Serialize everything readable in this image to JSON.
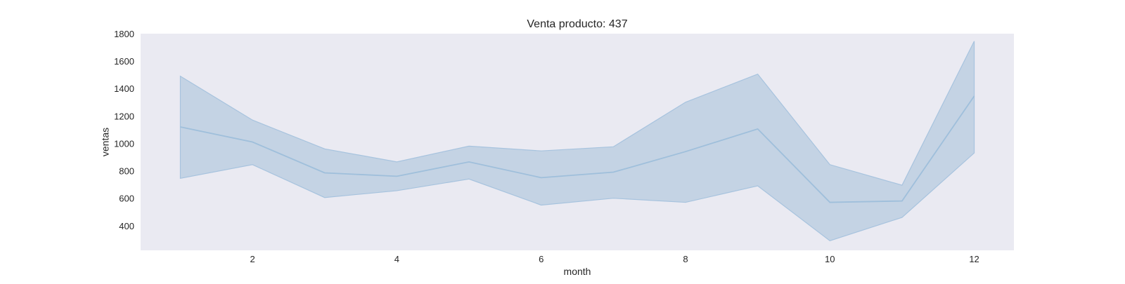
{
  "chart_data": {
    "type": "line",
    "title": "Venta producto: 437",
    "xlabel": "month",
    "ylabel": "ventas",
    "x": [
      1,
      2,
      3,
      4,
      5,
      6,
      7,
      8,
      9,
      10,
      11,
      12
    ],
    "series": [
      {
        "values": [
          1120,
          1010,
          785,
          760,
          865,
          750,
          790,
          940,
          1105,
          570,
          580,
          1345
        ],
        "ci_upper": [
          1490,
          1170,
          960,
          865,
          980,
          945,
          975,
          1300,
          1505,
          845,
          695,
          1745
        ],
        "ci_lower": [
          745,
          845,
          605,
          655,
          740,
          550,
          600,
          570,
          690,
          290,
          460,
          930
        ]
      }
    ],
    "xlim": [
      0.45,
      12.55
    ],
    "ylim": [
      220,
      1800
    ],
    "xticks": [
      2,
      4,
      6,
      8,
      10,
      12
    ],
    "yticks": [
      400,
      600,
      800,
      1000,
      1200,
      1400,
      1600,
      1800
    ],
    "grid": false,
    "colors": {
      "plot_background": "#eaeaf2",
      "line": "#9fbfdb",
      "band_fill": "#c2d2e3",
      "band_edge": "#a7c3de",
      "text": "#262626"
    }
  }
}
